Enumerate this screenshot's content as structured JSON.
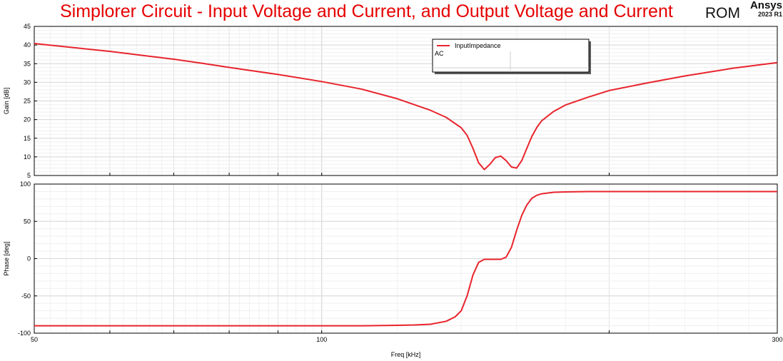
{
  "header": {
    "title": "Simplorer Circuit - Input Voltage and Current, and Output Voltage and Current",
    "rom_label": "ROM",
    "logo_brand": "Ansys",
    "logo_version": "2023 R1"
  },
  "chart_data": [
    {
      "type": "line",
      "x_scale": "log",
      "xlim": [
        50,
        300
      ],
      "ylim": [
        5,
        45
      ],
      "ylabel": "Gain [dB]",
      "xlabel": "",
      "yticks": [
        "5",
        "10",
        "15",
        "20",
        "25",
        "30",
        "35",
        "40",
        "45"
      ],
      "grid": true,
      "legend": {
        "position": "top-center",
        "entries": [
          "InputImpedance"
        ],
        "sub_label": "AC"
      },
      "series": [
        {
          "name": "InputImpedance",
          "color": "#e8242c",
          "x": [
            50,
            55,
            60,
            65,
            70,
            75,
            80,
            90,
            100,
            110,
            120,
            130,
            135,
            140,
            142,
            144,
            146,
            148,
            150,
            152,
            154,
            156,
            158,
            160,
            162,
            164,
            166,
            168,
            170,
            175,
            180,
            190,
            200,
            220,
            240,
            270,
            300
          ],
          "y": [
            40.4,
            39.3,
            38.3,
            37.2,
            36.2,
            35.1,
            34.0,
            32.1,
            30.2,
            28.2,
            25.6,
            22.5,
            20.6,
            17.8,
            15.8,
            12.3,
            8.4,
            6.6,
            8.0,
            9.8,
            10.2,
            9.0,
            7.3,
            7.0,
            9.0,
            12.3,
            15.5,
            17.9,
            19.7,
            22.2,
            23.9,
            26.0,
            27.8,
            29.9,
            31.7,
            33.8,
            35.3
          ]
        }
      ]
    },
    {
      "type": "line",
      "x_scale": "log",
      "xlim": [
        50,
        300
      ],
      "ylim": [
        -100,
        100
      ],
      "ylabel": "Phase [deg]",
      "xlabel": "Freq [kHz]",
      "xticks": [
        "50",
        "100",
        "300"
      ],
      "yticks": [
        "-100",
        "-50",
        "0",
        "50",
        "100"
      ],
      "grid": true,
      "series": [
        {
          "name": "InputImpedance",
          "color": "#e8242c",
          "x": [
            50,
            80,
            100,
            110,
            120,
            125,
            130,
            135,
            138,
            140,
            142,
            144,
            146,
            148,
            150,
            152,
            154,
            156,
            158,
            160,
            162,
            164,
            166,
            168,
            170,
            175,
            180,
            190,
            200,
            220,
            250,
            300
          ],
          "y": [
            -90,
            -90,
            -90,
            -90,
            -89.5,
            -89,
            -88,
            -84,
            -78,
            -70,
            -50,
            -22,
            -5,
            -1,
            -1,
            -1,
            -1,
            2,
            15,
            38,
            58,
            72,
            81,
            85,
            87,
            89,
            89.5,
            90,
            90,
            90,
            90,
            90
          ]
        }
      ]
    }
  ]
}
